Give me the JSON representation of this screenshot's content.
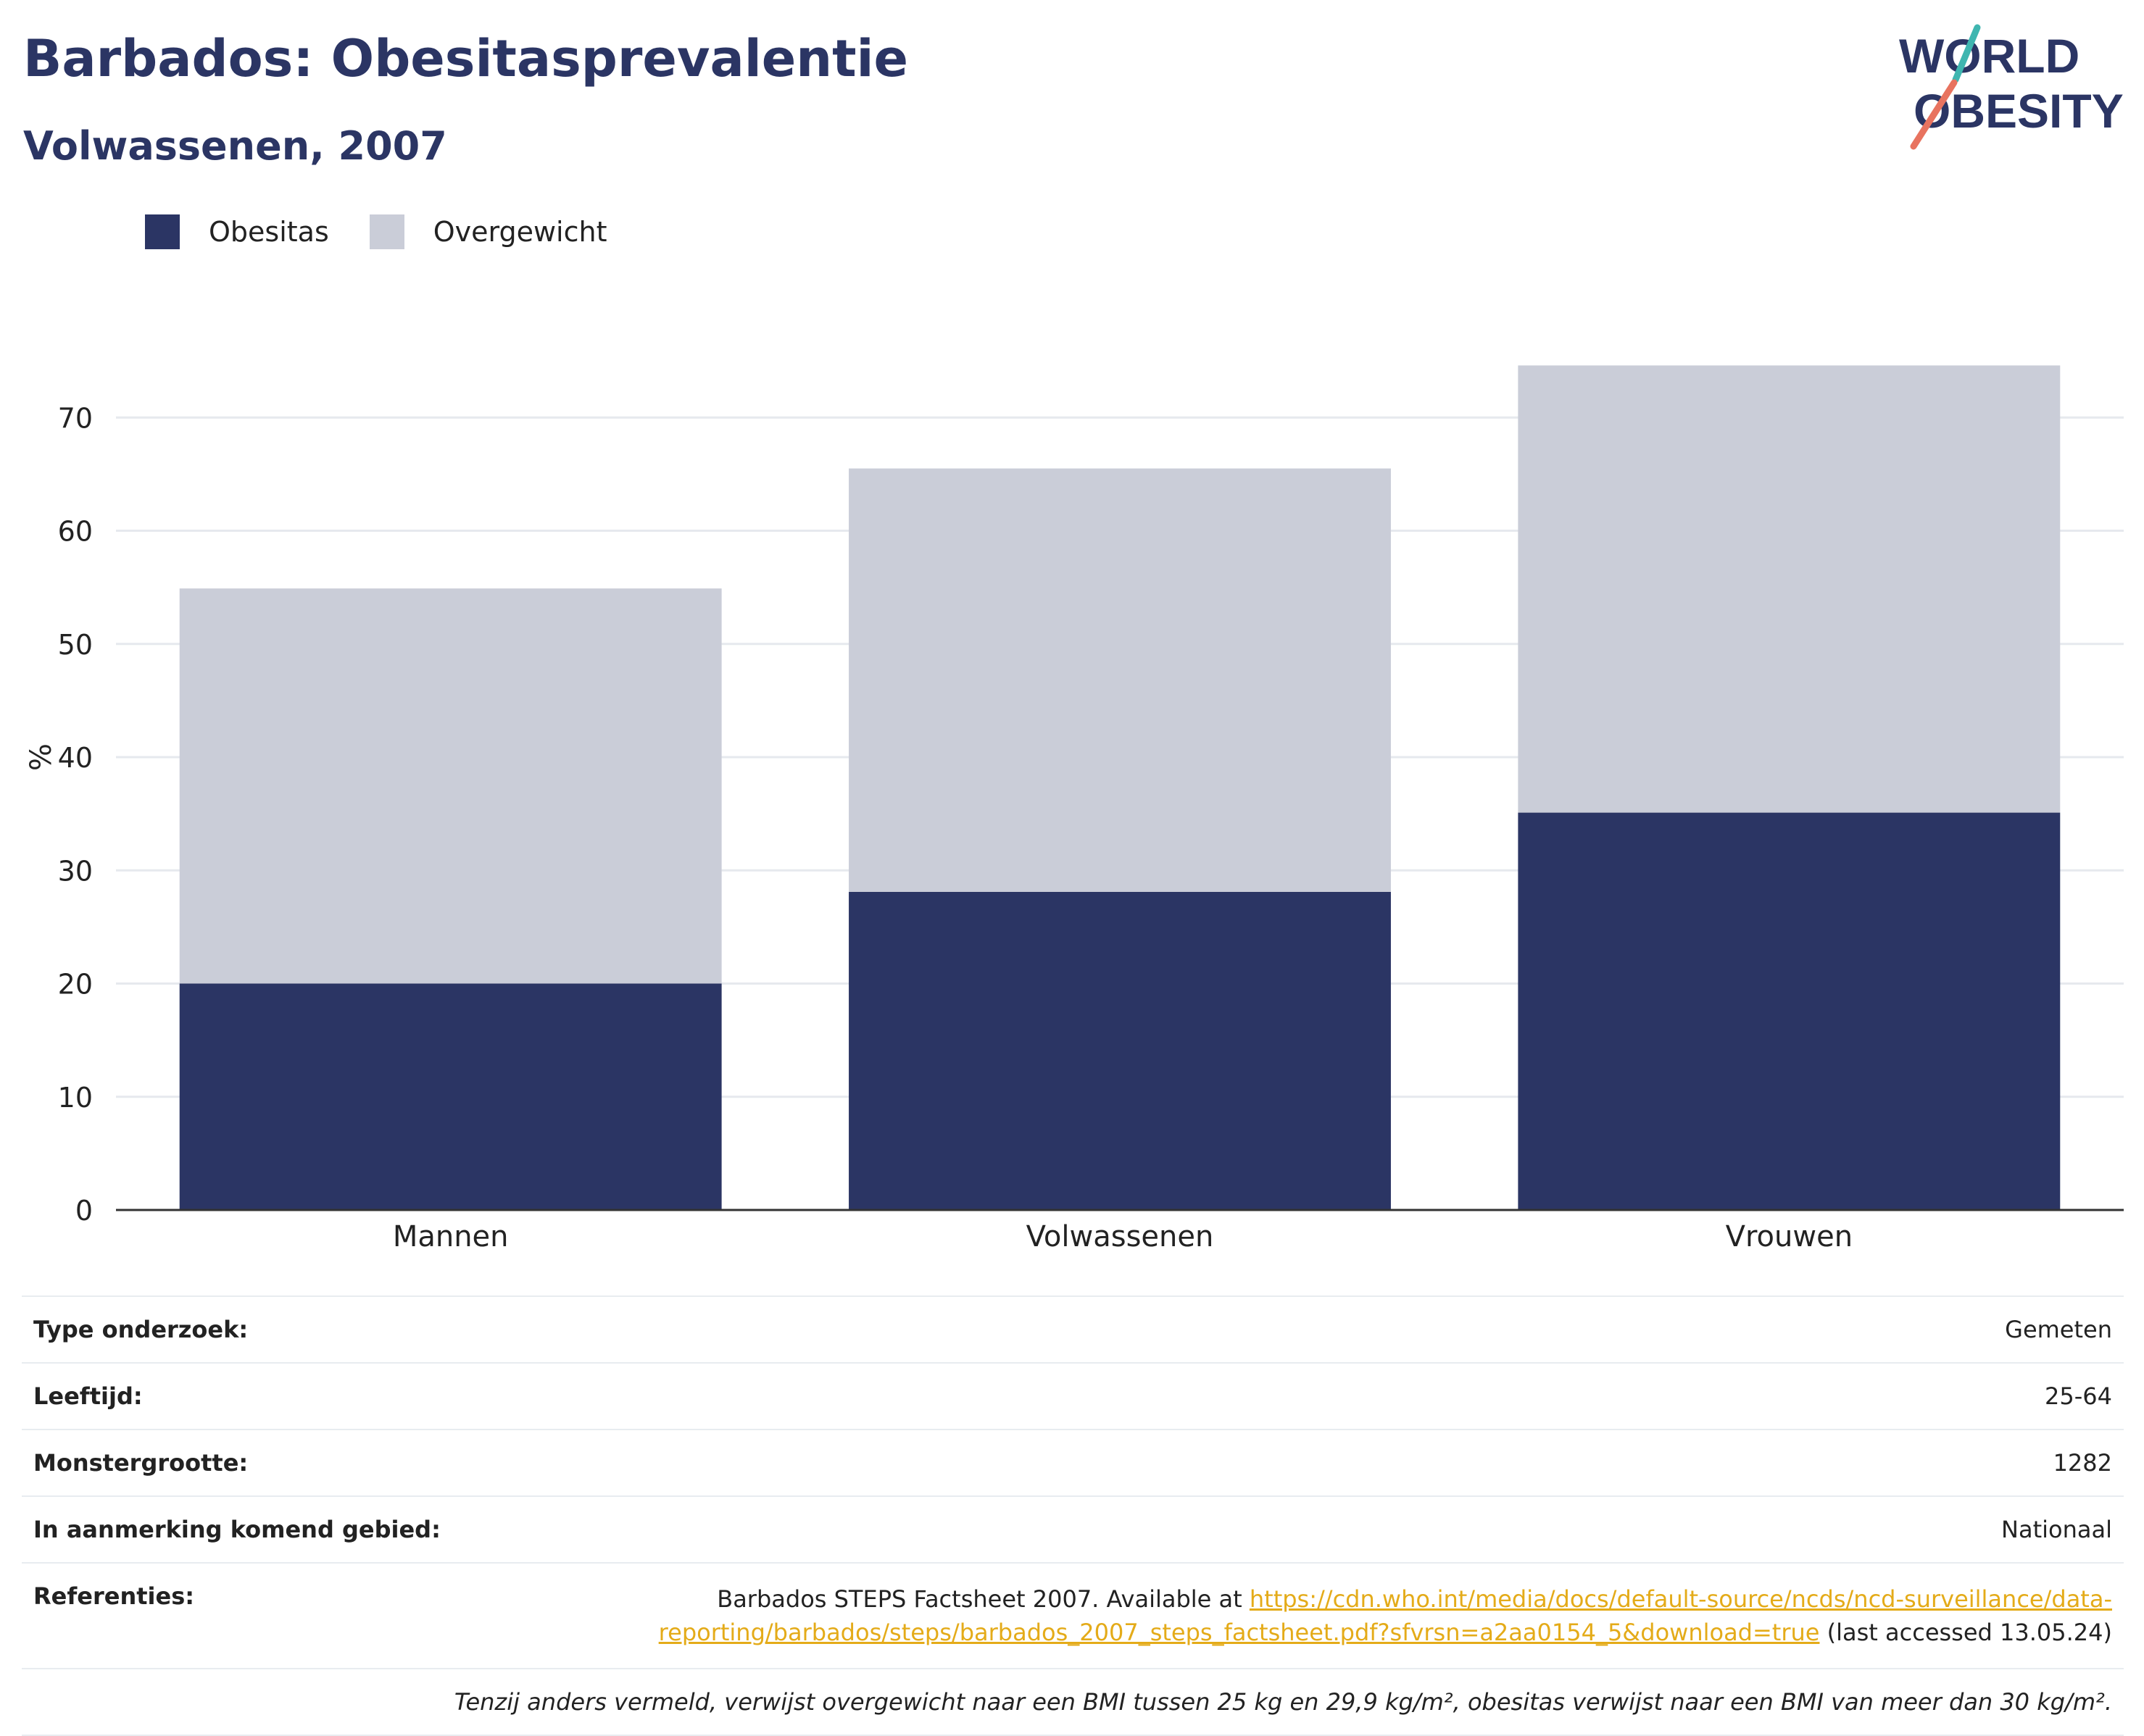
{
  "header": {
    "title": "Barbados: Obesitasprevalentie",
    "subtitle": "Volwassenen, 2007"
  },
  "logo": {
    "line1": "WORLD",
    "line2": "OBESITY",
    "colors": {
      "text": "#2b3564",
      "stroke_top": "#3fb6b0",
      "stroke_bottom": "#e8735f"
    }
  },
  "legend": [
    {
      "label": "Obesitas",
      "color": "#2b3564"
    },
    {
      "label": "Overgewicht",
      "color": "#cacdd8"
    }
  ],
  "chart_data": {
    "type": "bar",
    "stacked": true,
    "categories": [
      "Mannen",
      "Volwassenen",
      "Vrouwen"
    ],
    "series": [
      {
        "name": "Obesitas",
        "values": [
          20,
          28.1,
          35.1
        ],
        "color": "#2b3564"
      },
      {
        "name": "Overgewicht",
        "values": [
          34.9,
          37.4,
          39.5
        ],
        "color": "#cacdd8"
      }
    ],
    "ylabel": "%",
    "xlabel": "",
    "ylim": [
      0,
      80
    ],
    "yticks": [
      0,
      10,
      20,
      30,
      40,
      50,
      60,
      70
    ],
    "grid": true,
    "legend_position": "top-left"
  },
  "info": {
    "survey_type": {
      "label": "Type onderzoek:",
      "value": "Gemeten"
    },
    "age": {
      "label": "Leeftijd:",
      "value": "25-64"
    },
    "sample_size": {
      "label": "Monstergrootte:",
      "value": "1282"
    },
    "area": {
      "label": "In aanmerking komend gebied:",
      "value": "Nationaal"
    },
    "references": {
      "label": "Referenties:",
      "text_before": "Barbados STEPS Factsheet 2007. Available at ",
      "link": "https://cdn.who.int/media/docs/default-source/ncds/ncd-surveillance/data-reporting/barbados/steps/barbados_2007_steps_factsheet.pdf?sfvrsn=a2aa0154_5&download=true",
      "text_after": " (last accessed 13.05.24)"
    },
    "note": "Tenzij anders vermeld, verwijst overgewicht naar een BMI tussen 25 kg en 29,9 kg/m², obesitas verwijst naar een BMI van meer dan 30 kg/m²."
  }
}
